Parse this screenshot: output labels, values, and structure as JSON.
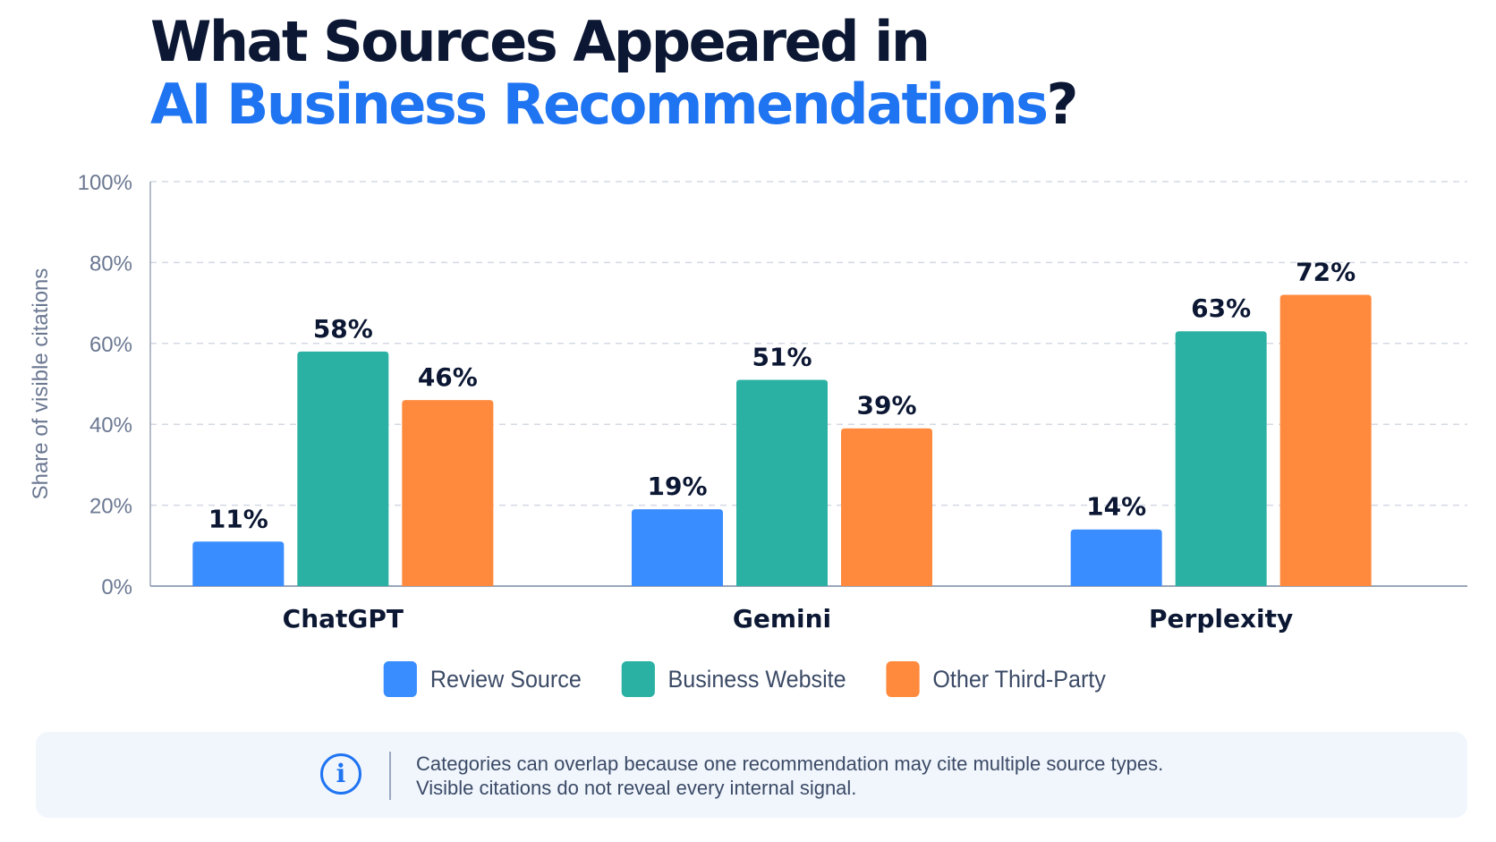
{
  "title": {
    "line1": "What Sources Appeared in",
    "line2_accent": "AI Business Recommendations",
    "line2_end": "?"
  },
  "chart_data": {
    "type": "bar",
    "categories": [
      "ChatGPT",
      "Gemini",
      "Perplexity"
    ],
    "series": [
      {
        "name": "Review Source",
        "values": [
          11,
          19,
          14
        ],
        "color": "#3a8dff"
      },
      {
        "name": "Business Website",
        "values": [
          58,
          51,
          63
        ],
        "color": "#2bb1a3"
      },
      {
        "name": "Other Third-Party",
        "values": [
          46,
          39,
          72
        ],
        "color": "#ff8a3d"
      }
    ],
    "ylabel": "Share of visible citations",
    "ylim": [
      0,
      100
    ],
    "yticks": [
      "0%",
      "20%",
      "40%",
      "60%",
      "80%",
      "100%"
    ],
    "value_suffix": "%",
    "grid": true,
    "legend_position": "bottom"
  },
  "note": {
    "line1": "Categories can overlap because one recommendation may cite multiple source types.",
    "line2": "Visible citations do not reveal every internal signal."
  }
}
